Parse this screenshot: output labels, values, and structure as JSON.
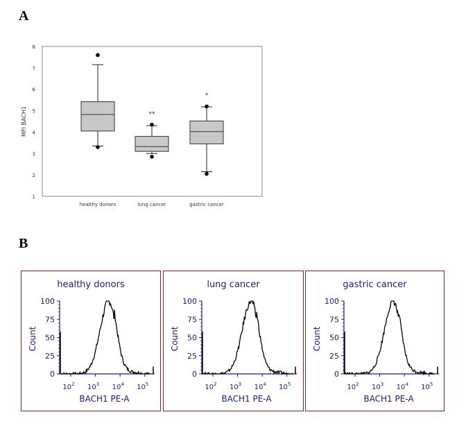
{
  "panel_labels": {
    "a": "A",
    "b": "B"
  },
  "colors": {
    "box_fill": "#c8c8c8",
    "panel_border": "#8b2020",
    "hist_axis": "#1a1a7a",
    "hist_text": "#1a1a7a"
  },
  "chart_data": [
    {
      "type": "box",
      "ylabel": "MFI BACH1",
      "ylim": [
        1,
        8
      ],
      "yticks": [
        "1",
        "2",
        "3",
        "4",
        "5",
        "6",
        "7",
        "8"
      ],
      "categories": [
        "healthy donors",
        "lung cancer",
        "gastric cancer"
      ],
      "boxes": [
        {
          "whisker_low": 3.35,
          "q1": 4.05,
          "median": 4.82,
          "q3": 5.42,
          "whisker_high": 7.15,
          "outliers": [
            3.3,
            7.6
          ],
          "annotation": ""
        },
        {
          "whisker_low": 3.0,
          "q1": 3.1,
          "median": 3.32,
          "q3": 3.8,
          "whisker_high": 4.3,
          "outliers": [
            2.85,
            4.35
          ],
          "annotation": "**"
        },
        {
          "whisker_low": 2.15,
          "q1": 3.45,
          "median": 4.02,
          "q3": 4.52,
          "whisker_high": 5.18,
          "outliers": [
            2.05,
            5.2
          ],
          "annotation": "*"
        }
      ]
    },
    {
      "type": "histogram",
      "title": "healthy donors",
      "xlabel": "BACH1 PE-A",
      "ylabel": "Count",
      "yticks": [
        "0",
        "25",
        "50",
        "75",
        "100"
      ],
      "xticks": [
        "10^2",
        "10^3",
        "10^4",
        "10^5"
      ],
      "peak_log10": 3.55,
      "ylim": [
        0,
        100
      ]
    },
    {
      "type": "histogram",
      "title": "lung cancer",
      "xlabel": "BACH1 PE-A",
      "ylabel": "Count",
      "yticks": [
        "0",
        "25",
        "50",
        "75",
        "100"
      ],
      "xticks": [
        "10^2",
        "10^3",
        "10^4",
        "10^5"
      ],
      "peak_log10": 3.55,
      "ylim": [
        0,
        100
      ]
    },
    {
      "type": "histogram",
      "title": "gastric cancer",
      "xlabel": "BACH1 PE-A",
      "ylabel": "Count",
      "yticks": [
        "0",
        "25",
        "50",
        "75",
        "100"
      ],
      "xticks": [
        "10^2",
        "10^3",
        "10^4",
        "10^5"
      ],
      "peak_log10": 3.55,
      "ylim": [
        0,
        100
      ]
    }
  ]
}
